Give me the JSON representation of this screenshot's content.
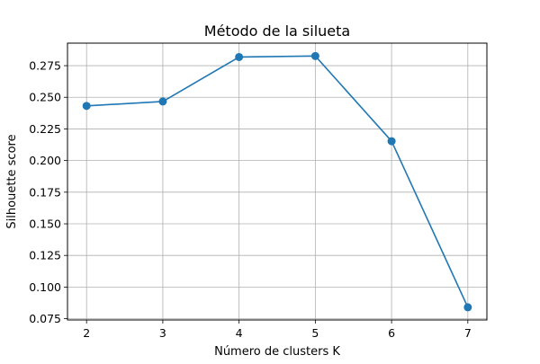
{
  "chart_data": {
    "type": "line",
    "title": "Método de la silueta",
    "xlabel": "Número de clusters K",
    "ylabel": "Silhouette score",
    "x": [
      2,
      3,
      4,
      5,
      6,
      7
    ],
    "series": [
      {
        "values": [
          0.2432,
          0.2467,
          0.2818,
          0.2826,
          0.2153,
          0.084
        ],
        "color": "#1f77b4",
        "marker": "circle"
      }
    ],
    "xticks": [
      "2",
      "3",
      "4",
      "5",
      "6",
      "7"
    ],
    "yticks": [
      "0.075",
      "0.100",
      "0.125",
      "0.150",
      "0.175",
      "0.200",
      "0.225",
      "0.250",
      "0.275"
    ],
    "xlim": [
      1.75,
      7.25
    ],
    "ylim": [
      0.074,
      0.2928
    ],
    "grid": true
  }
}
